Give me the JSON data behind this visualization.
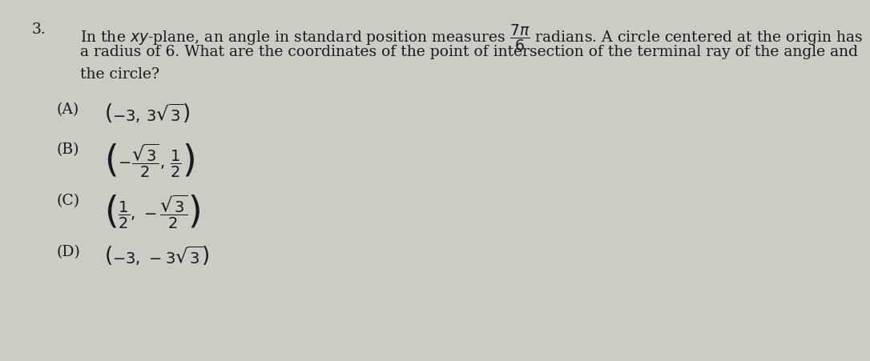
{
  "bg_color": "#ccccc4",
  "text_color": "#1a1a1a",
  "fontsize_q": 13.5,
  "fontsize_opt": 14,
  "q_num": "3.",
  "line1": "In the $xy$-plane, an angle in standard position measures $\\dfrac{7\\pi}{6}$ radians. A circle centered at the origin has",
  "line2": "a radius of 6. What are the coordinates of the point of intersection of the terminal ray of the angle and",
  "line3": "the circle?",
  "opt_labels": [
    "(A)",
    "(B)",
    "(C)",
    "(D)"
  ],
  "opt_A": "$\\left(-3,\\,3\\sqrt{3}\\right)$",
  "opt_B": "$\\left(-\\dfrac{\\sqrt{3}}{2},\\,\\dfrac{1}{2}\\right)$",
  "opt_C": "$\\left(\\dfrac{1}{2},\\,-\\dfrac{\\sqrt{3}}{2}\\right)$",
  "opt_D": "$\\left(-3,\\,-3\\sqrt{3}\\right)$"
}
